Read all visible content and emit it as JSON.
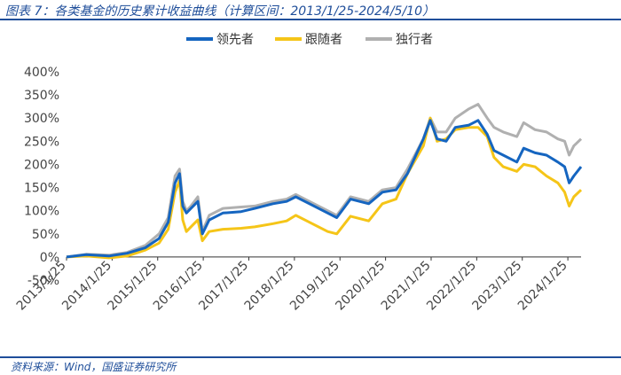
{
  "figure": {
    "title": "图表 7：各类基金的历史累计收益曲线（计算区间：2013/1/25-2024/5/10）",
    "source": "资料来源：Wind，国盛证券研究所"
  },
  "chart_data": {
    "type": "line",
    "title": "",
    "xlabel": "",
    "ylabel": "",
    "ylim": [
      -0.5,
      4.0
    ],
    "y_ticks": [
      "-50%",
      "0%",
      "50%",
      "100%",
      "150%",
      "200%",
      "250%",
      "300%",
      "350%",
      "400%"
    ],
    "y_tick_values": [
      -0.5,
      0,
      0.5,
      1.0,
      1.5,
      2.0,
      2.5,
      3.0,
      3.5,
      4.0
    ],
    "x_ticks": [
      "2013/1/25",
      "2014/1/25",
      "2015/1/25",
      "2016/1/25",
      "2017/1/25",
      "2018/1/25",
      "2019/1/25",
      "2020/1/25",
      "2021/1/25",
      "2022/1/25",
      "2023/1/25",
      "2024/1/25"
    ],
    "x_tick_values": [
      2013.07,
      2014.07,
      2015.07,
      2016.07,
      2017.07,
      2018.07,
      2019.07,
      2020.07,
      2021.07,
      2022.07,
      2023.07,
      2024.07
    ],
    "xlim": [
      2013.07,
      2024.36
    ],
    "grid": false,
    "legend": "top-center",
    "x": [
      2013.07,
      2013.5,
      2014.0,
      2014.4,
      2014.8,
      2015.1,
      2015.3,
      2015.45,
      2015.55,
      2015.62,
      2015.7,
      2015.8,
      2015.95,
      2016.05,
      2016.2,
      2016.5,
      2016.9,
      2017.2,
      2017.6,
      2017.9,
      2018.1,
      2018.4,
      2018.8,
      2019.0,
      2019.3,
      2019.7,
      2020.0,
      2020.3,
      2020.55,
      2020.9,
      2021.05,
      2021.2,
      2021.4,
      2021.6,
      2021.9,
      2022.1,
      2022.3,
      2022.45,
      2022.65,
      2022.95,
      2023.1,
      2023.35,
      2023.6,
      2023.85,
      2024.0,
      2024.1,
      2024.2,
      2024.36
    ],
    "series": [
      {
        "name": "领先者",
        "color": "#1565c0",
        "values": [
          0.0,
          0.05,
          0.02,
          0.08,
          0.2,
          0.4,
          0.75,
          1.6,
          1.8,
          1.1,
          0.95,
          1.05,
          1.2,
          0.5,
          0.8,
          0.95,
          0.98,
          1.05,
          1.15,
          1.2,
          1.3,
          1.15,
          0.95,
          0.85,
          1.25,
          1.15,
          1.4,
          1.45,
          1.8,
          2.55,
          2.95,
          2.55,
          2.5,
          2.8,
          2.85,
          2.95,
          2.65,
          2.3,
          2.2,
          2.05,
          2.35,
          2.25,
          2.2,
          2.05,
          1.95,
          1.6,
          1.75,
          1.95
        ]
      },
      {
        "name": "跟随者",
        "color": "#f5c518",
        "values": [
          0.0,
          0.02,
          -0.02,
          0.02,
          0.15,
          0.3,
          0.6,
          1.4,
          1.65,
          0.8,
          0.55,
          0.65,
          0.8,
          0.35,
          0.55,
          0.6,
          0.62,
          0.65,
          0.72,
          0.78,
          0.9,
          0.75,
          0.55,
          0.5,
          0.88,
          0.78,
          1.15,
          1.25,
          1.8,
          2.4,
          3.0,
          2.5,
          2.55,
          2.75,
          2.8,
          2.8,
          2.6,
          2.15,
          1.95,
          1.85,
          2.0,
          1.95,
          1.75,
          1.6,
          1.4,
          1.1,
          1.3,
          1.45
        ]
      },
      {
        "name": "独行者",
        "color": "#b0b0b0",
        "values": [
          0.0,
          0.06,
          0.04,
          0.1,
          0.25,
          0.5,
          0.85,
          1.75,
          1.9,
          1.2,
          1.0,
          1.1,
          1.3,
          0.55,
          0.9,
          1.05,
          1.08,
          1.1,
          1.2,
          1.25,
          1.35,
          1.2,
          1.0,
          0.9,
          1.3,
          1.2,
          1.45,
          1.5,
          1.9,
          2.55,
          3.0,
          2.7,
          2.7,
          3.0,
          3.2,
          3.3,
          3.0,
          2.8,
          2.7,
          2.6,
          2.9,
          2.75,
          2.7,
          2.55,
          2.5,
          2.2,
          2.4,
          2.55
        ]
      }
    ]
  }
}
